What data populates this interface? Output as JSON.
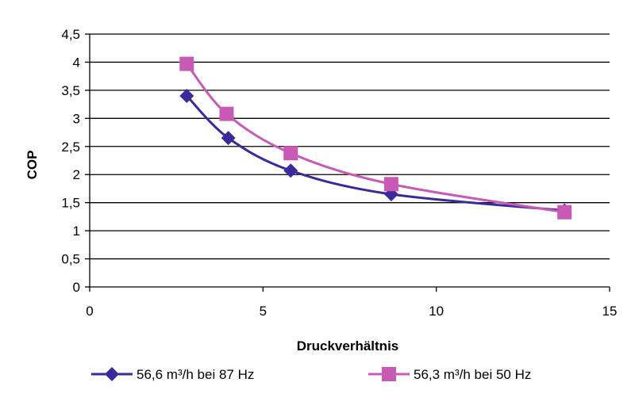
{
  "chart_data": {
    "type": "line",
    "title": "",
    "xlabel": "Druckverhältnis",
    "ylabel": "COP",
    "xlim": [
      0,
      15
    ],
    "ylim": [
      0,
      4.5
    ],
    "x_ticks": [
      0,
      5,
      10,
      15
    ],
    "x_tick_labels": [
      "0",
      "5",
      "10",
      "15"
    ],
    "y_ticks": [
      0,
      0.5,
      1,
      1.5,
      2,
      2.5,
      3,
      3.5,
      4,
      4.5
    ],
    "y_tick_labels": [
      "0",
      "0,5",
      "1",
      "1,5",
      "2",
      "2,5",
      "3",
      "3,5",
      "4",
      "4,5"
    ],
    "grid": "horizontal",
    "legend_position": "bottom",
    "smoothed": true,
    "series": [
      {
        "name": "56,6 m³/h bei 87 Hz",
        "color": "#3a2a9a",
        "marker": "diamond",
        "x": [
          2.8,
          4.0,
          5.8,
          8.7,
          13.7
        ],
        "y": [
          3.4,
          2.65,
          2.07,
          1.65,
          1.36
        ]
      },
      {
        "name": "56,3 m³/h bei 50 Hz",
        "color": "#c85ab5",
        "marker": "square",
        "x": [
          2.8,
          3.95,
          5.8,
          8.7,
          13.7
        ],
        "y": [
          3.97,
          3.08,
          2.38,
          1.83,
          1.33
        ]
      }
    ]
  }
}
